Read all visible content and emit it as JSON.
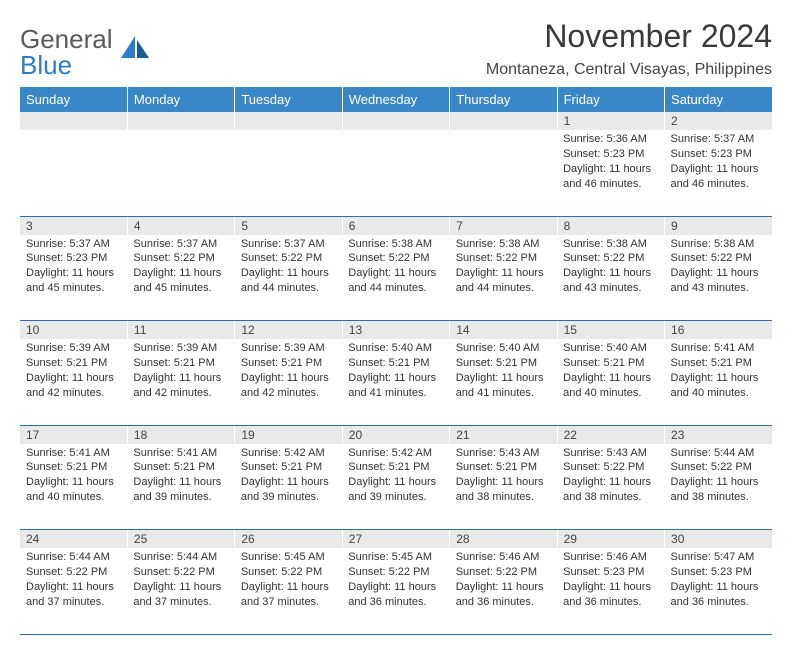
{
  "logo": {
    "word1": "General",
    "word2": "Blue"
  },
  "title": "November 2024",
  "location": "Montaneza, Central Visayas, Philippines",
  "colors": {
    "header_bg": "#3a87c8",
    "header_text": "#ffffff",
    "daynum_bg": "#e9e9e9",
    "row_border": "#2e6ca3",
    "logo_gray": "#5a5a5a",
    "logo_blue": "#2e7cc1"
  },
  "daysOfWeek": [
    "Sunday",
    "Monday",
    "Tuesday",
    "Wednesday",
    "Thursday",
    "Friday",
    "Saturday"
  ],
  "weeks": [
    [
      {
        "n": "",
        "sr": "",
        "ss": "",
        "dl": ""
      },
      {
        "n": "",
        "sr": "",
        "ss": "",
        "dl": ""
      },
      {
        "n": "",
        "sr": "",
        "ss": "",
        "dl": ""
      },
      {
        "n": "",
        "sr": "",
        "ss": "",
        "dl": ""
      },
      {
        "n": "",
        "sr": "",
        "ss": "",
        "dl": ""
      },
      {
        "n": "1",
        "sr": "Sunrise: 5:36 AM",
        "ss": "Sunset: 5:23 PM",
        "dl": "Daylight: 11 hours and 46 minutes."
      },
      {
        "n": "2",
        "sr": "Sunrise: 5:37 AM",
        "ss": "Sunset: 5:23 PM",
        "dl": "Daylight: 11 hours and 46 minutes."
      }
    ],
    [
      {
        "n": "3",
        "sr": "Sunrise: 5:37 AM",
        "ss": "Sunset: 5:23 PM",
        "dl": "Daylight: 11 hours and 45 minutes."
      },
      {
        "n": "4",
        "sr": "Sunrise: 5:37 AM",
        "ss": "Sunset: 5:22 PM",
        "dl": "Daylight: 11 hours and 45 minutes."
      },
      {
        "n": "5",
        "sr": "Sunrise: 5:37 AM",
        "ss": "Sunset: 5:22 PM",
        "dl": "Daylight: 11 hours and 44 minutes."
      },
      {
        "n": "6",
        "sr": "Sunrise: 5:38 AM",
        "ss": "Sunset: 5:22 PM",
        "dl": "Daylight: 11 hours and 44 minutes."
      },
      {
        "n": "7",
        "sr": "Sunrise: 5:38 AM",
        "ss": "Sunset: 5:22 PM",
        "dl": "Daylight: 11 hours and 44 minutes."
      },
      {
        "n": "8",
        "sr": "Sunrise: 5:38 AM",
        "ss": "Sunset: 5:22 PM",
        "dl": "Daylight: 11 hours and 43 minutes."
      },
      {
        "n": "9",
        "sr": "Sunrise: 5:38 AM",
        "ss": "Sunset: 5:22 PM",
        "dl": "Daylight: 11 hours and 43 minutes."
      }
    ],
    [
      {
        "n": "10",
        "sr": "Sunrise: 5:39 AM",
        "ss": "Sunset: 5:21 PM",
        "dl": "Daylight: 11 hours and 42 minutes."
      },
      {
        "n": "11",
        "sr": "Sunrise: 5:39 AM",
        "ss": "Sunset: 5:21 PM",
        "dl": "Daylight: 11 hours and 42 minutes."
      },
      {
        "n": "12",
        "sr": "Sunrise: 5:39 AM",
        "ss": "Sunset: 5:21 PM",
        "dl": "Daylight: 11 hours and 42 minutes."
      },
      {
        "n": "13",
        "sr": "Sunrise: 5:40 AM",
        "ss": "Sunset: 5:21 PM",
        "dl": "Daylight: 11 hours and 41 minutes."
      },
      {
        "n": "14",
        "sr": "Sunrise: 5:40 AM",
        "ss": "Sunset: 5:21 PM",
        "dl": "Daylight: 11 hours and 41 minutes."
      },
      {
        "n": "15",
        "sr": "Sunrise: 5:40 AM",
        "ss": "Sunset: 5:21 PM",
        "dl": "Daylight: 11 hours and 40 minutes."
      },
      {
        "n": "16",
        "sr": "Sunrise: 5:41 AM",
        "ss": "Sunset: 5:21 PM",
        "dl": "Daylight: 11 hours and 40 minutes."
      }
    ],
    [
      {
        "n": "17",
        "sr": "Sunrise: 5:41 AM",
        "ss": "Sunset: 5:21 PM",
        "dl": "Daylight: 11 hours and 40 minutes."
      },
      {
        "n": "18",
        "sr": "Sunrise: 5:41 AM",
        "ss": "Sunset: 5:21 PM",
        "dl": "Daylight: 11 hours and 39 minutes."
      },
      {
        "n": "19",
        "sr": "Sunrise: 5:42 AM",
        "ss": "Sunset: 5:21 PM",
        "dl": "Daylight: 11 hours and 39 minutes."
      },
      {
        "n": "20",
        "sr": "Sunrise: 5:42 AM",
        "ss": "Sunset: 5:21 PM",
        "dl": "Daylight: 11 hours and 39 minutes."
      },
      {
        "n": "21",
        "sr": "Sunrise: 5:43 AM",
        "ss": "Sunset: 5:21 PM",
        "dl": "Daylight: 11 hours and 38 minutes."
      },
      {
        "n": "22",
        "sr": "Sunrise: 5:43 AM",
        "ss": "Sunset: 5:22 PM",
        "dl": "Daylight: 11 hours and 38 minutes."
      },
      {
        "n": "23",
        "sr": "Sunrise: 5:44 AM",
        "ss": "Sunset: 5:22 PM",
        "dl": "Daylight: 11 hours and 38 minutes."
      }
    ],
    [
      {
        "n": "24",
        "sr": "Sunrise: 5:44 AM",
        "ss": "Sunset: 5:22 PM",
        "dl": "Daylight: 11 hours and 37 minutes."
      },
      {
        "n": "25",
        "sr": "Sunrise: 5:44 AM",
        "ss": "Sunset: 5:22 PM",
        "dl": "Daylight: 11 hours and 37 minutes."
      },
      {
        "n": "26",
        "sr": "Sunrise: 5:45 AM",
        "ss": "Sunset: 5:22 PM",
        "dl": "Daylight: 11 hours and 37 minutes."
      },
      {
        "n": "27",
        "sr": "Sunrise: 5:45 AM",
        "ss": "Sunset: 5:22 PM",
        "dl": "Daylight: 11 hours and 36 minutes."
      },
      {
        "n": "28",
        "sr": "Sunrise: 5:46 AM",
        "ss": "Sunset: 5:22 PM",
        "dl": "Daylight: 11 hours and 36 minutes."
      },
      {
        "n": "29",
        "sr": "Sunrise: 5:46 AM",
        "ss": "Sunset: 5:23 PM",
        "dl": "Daylight: 11 hours and 36 minutes."
      },
      {
        "n": "30",
        "sr": "Sunrise: 5:47 AM",
        "ss": "Sunset: 5:23 PM",
        "dl": "Daylight: 11 hours and 36 minutes."
      }
    ]
  ]
}
